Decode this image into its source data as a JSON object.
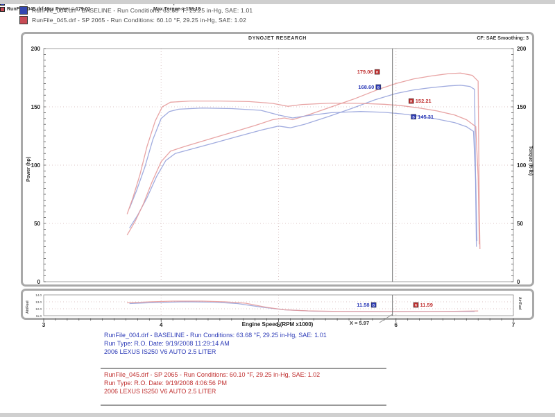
{
  "colors": {
    "accent_red": "#c03030",
    "accent_blue": "#2f3db8",
    "curve_red": "#e59a9a",
    "curve_blue": "#97a3dc",
    "panel_border": "#a9a9a9"
  },
  "top_runs": [
    {
      "series": "blue",
      "swatch": "#3347b0",
      "text": "RunFile_004.drf - BASELINE  -  Run Conditions: 63.68 °F, 29.25 in-Hg, SAE: 1.01"
    },
    {
      "series": "red",
      "swatch": "#c84b55",
      "text": "RunFile_045.drf - SP 2065  -  Run Conditions: 60.10 °F, 29.25 in-Hg, SAE: 1.02"
    }
  ],
  "chart_header": {
    "brand": "DYNOJET RESEARCH",
    "correction": "CF: SAE   Smoothing: 3"
  },
  "legend": {
    "rows": [
      {
        "series": "blue",
        "swatch": "#3347b0",
        "file": "RunFile_004.drf Max Power = 168.92",
        "torque": "Max Torque = 151.92"
      },
      {
        "series": "red",
        "swatch": "#c84b55",
        "file": "RunFile_045.drf Max Power = 179.01",
        "torque": "Max Torque = 153.18"
      }
    ]
  },
  "axis": {
    "x_label": "Engine Speed (RPM x1000)",
    "y_left_label": "Power (hp)",
    "y_right_label": "Torque (ft-lb)",
    "afr_label_left": "Air/Fuel",
    "afr_label_right": "Air/Fuel",
    "cursor_label": "X = 5.97"
  },
  "footer": {
    "blue_lines": [
      "RunFile_004.drf - BASELINE  -  Run Conditions: 63.68 °F, 29.25 in-Hg, SAE: 1.01",
      "Run Type: R.O.  Date: 9/19/2008 11:29:14 AM",
      "2006 LEXUS IS250 V6 AUTO 2.5 LITER"
    ],
    "red_lines": [
      "RunFile_045.drf - SP 2065  -  Run Conditions: 60.10 °F, 29.25 in-Hg, SAE: 1.02",
      "Run Type: R.O.  Date: 9/19/2008 4:06:56 PM",
      "2006 LEXUS IS250 V6 AUTO 2.5 LITER"
    ]
  },
  "chart_data": [
    {
      "id": "main",
      "type": "line",
      "title": "DYNOJET RESEARCH",
      "xlabel": "Engine Speed (RPM x1000)",
      "ylabel_left": "Power (hp)",
      "ylabel_right": "Torque (ft-lb)",
      "xlim": [
        3,
        7
      ],
      "ylim": [
        0,
        200
      ],
      "ytick_step": 50,
      "ytick_minor": 5,
      "ytick_decimals": 0,
      "ygrid": [
        50,
        100,
        150
      ],
      "xgrid": [
        4,
        5,
        6,
        7
      ],
      "grid": true,
      "legend_position": "top-left",
      "cursor_x": 5.97,
      "series": [
        {
          "name": "baseline-power-hp",
          "color": "#97a3dc",
          "points": [
            [
              3.73,
              46
            ],
            [
              3.8,
              57
            ],
            [
              3.88,
              72
            ],
            [
              3.96,
              90
            ],
            [
              4.04,
              104
            ],
            [
              4.12,
              110
            ],
            [
              4.25,
              113.5
            ],
            [
              4.45,
              119
            ],
            [
              4.65,
              124.5
            ],
            [
              4.85,
              130
            ],
            [
              5.0,
              133.5
            ],
            [
              5.1,
              132
            ],
            [
              5.22,
              135
            ],
            [
              5.42,
              141.5
            ],
            [
              5.62,
              148.5
            ],
            [
              5.82,
              156
            ],
            [
              6.0,
              161.5
            ],
            [
              6.15,
              164.5
            ],
            [
              6.3,
              166.5
            ],
            [
              6.45,
              168
            ],
            [
              6.55,
              168.6
            ],
            [
              6.63,
              167.5
            ],
            [
              6.67,
              165
            ],
            [
              6.68,
              70
            ],
            [
              6.685,
              30
            ]
          ]
        },
        {
          "name": "sp2065-power-hp",
          "color": "#e59a9a",
          "points": [
            [
              3.71,
              40
            ],
            [
              3.78,
              52
            ],
            [
              3.85,
              67
            ],
            [
              3.92,
              85
            ],
            [
              4.0,
              103
            ],
            [
              4.08,
              112
            ],
            [
              4.2,
              116
            ],
            [
              4.4,
              122
            ],
            [
              4.6,
              128
            ],
            [
              4.8,
              134
            ],
            [
              4.95,
              139
            ],
            [
              5.05,
              140.5
            ],
            [
              5.12,
              139
            ],
            [
              5.25,
              143
            ],
            [
              5.45,
              150
            ],
            [
              5.65,
              157
            ],
            [
              5.85,
              165
            ],
            [
              6.0,
              170
            ],
            [
              6.15,
              174
            ],
            [
              6.3,
              176.5
            ],
            [
              6.45,
              178.5
            ],
            [
              6.55,
              179
            ],
            [
              6.65,
              177
            ],
            [
              6.7,
              172
            ],
            [
              6.71,
              60
            ],
            [
              6.715,
              28
            ]
          ]
        },
        {
          "name": "baseline-torque-ftlb",
          "color": "#97a3dc",
          "points": [
            [
              3.73,
              63
            ],
            [
              3.79,
              78
            ],
            [
              3.86,
              98
            ],
            [
              3.93,
              122
            ],
            [
              4.0,
              140
            ],
            [
              4.07,
              146
            ],
            [
              4.15,
              148
            ],
            [
              4.35,
              149
            ],
            [
              4.6,
              148.5
            ],
            [
              4.85,
              147
            ],
            [
              5.0,
              143
            ],
            [
              5.12,
              140.5
            ],
            [
              5.25,
              142.5
            ],
            [
              5.45,
              145
            ],
            [
              5.7,
              146
            ],
            [
              5.9,
              145.3
            ],
            [
              6.05,
              144
            ],
            [
              6.2,
              142
            ],
            [
              6.35,
              139.5
            ],
            [
              6.5,
              136.5
            ],
            [
              6.6,
              133
            ],
            [
              6.66,
              129
            ],
            [
              6.68,
              85
            ],
            [
              6.69,
              35
            ]
          ]
        },
        {
          "name": "sp2065-torque-ftlb",
          "color": "#e59a9a",
          "points": [
            [
              3.71,
              58
            ],
            [
              3.76,
              72
            ],
            [
              3.82,
              92
            ],
            [
              3.88,
              116
            ],
            [
              3.95,
              138
            ],
            [
              4.01,
              150
            ],
            [
              4.08,
              154
            ],
            [
              4.25,
              155
            ],
            [
              4.5,
              155
            ],
            [
              4.75,
              154.5
            ],
            [
              4.95,
              153
            ],
            [
              5.08,
              150.5
            ],
            [
              5.2,
              152
            ],
            [
              5.45,
              153.2
            ],
            [
              5.7,
              153
            ],
            [
              5.9,
              152.2
            ],
            [
              6.05,
              151
            ],
            [
              6.2,
              149
            ],
            [
              6.35,
              146.5
            ],
            [
              6.5,
              143
            ],
            [
              6.6,
              139
            ],
            [
              6.68,
              133
            ],
            [
              6.7,
              90
            ],
            [
              6.71,
              32
            ]
          ]
        }
      ],
      "annotations": [
        {
          "x": 5.84,
          "y": 180,
          "text": "179.06",
          "letter": "R",
          "color": "#c03030",
          "side": "left"
        },
        {
          "x": 5.85,
          "y": 167,
          "text": "168.60",
          "letter": "B",
          "color": "#2f3db8",
          "side": "left"
        },
        {
          "x": 6.13,
          "y": 155,
          "text": "152.21",
          "letter": "R",
          "color": "#c03030",
          "side": "right"
        },
        {
          "x": 6.15,
          "y": 141.5,
          "text": "145.31",
          "letter": "B",
          "color": "#2f3db8",
          "side": "right"
        }
      ]
    },
    {
      "id": "afr",
      "type": "line",
      "ylabel_left": "Air/Fuel",
      "ylabel_right": "Air/Fuel",
      "xlim": [
        3,
        7
      ],
      "ylim": [
        11,
        14
      ],
      "ytick_step": 1,
      "ytick_decimals": 1,
      "ygrid": [
        12,
        13
      ],
      "xgrid": [
        4,
        5,
        6,
        7
      ],
      "grid": true,
      "cursor_x": 5.97,
      "xtick_step": 1,
      "xtick_minor": 0.1,
      "series": [
        {
          "name": "baseline-afr",
          "color": "#97a3dc",
          "points": [
            [
              3.73,
              12.75
            ],
            [
              3.95,
              12.9
            ],
            [
              4.2,
              13.0
            ],
            [
              4.45,
              12.95
            ],
            [
              4.65,
              12.75
            ],
            [
              4.85,
              12.25
            ],
            [
              5.05,
              11.85
            ],
            [
              5.3,
              11.65
            ],
            [
              5.6,
              11.6
            ],
            [
              5.9,
              11.58
            ],
            [
              6.2,
              11.6
            ],
            [
              6.45,
              11.62
            ],
            [
              6.67,
              11.6
            ]
          ]
        },
        {
          "name": "sp2065-afr",
          "color": "#e59a9a",
          "points": [
            [
              3.71,
              12.85
            ],
            [
              3.9,
              13.0
            ],
            [
              4.1,
              13.1
            ],
            [
              4.35,
              13.1
            ],
            [
              4.55,
              13.0
            ],
            [
              4.72,
              12.8
            ],
            [
              4.9,
              12.2
            ],
            [
              5.05,
              11.85
            ],
            [
              5.25,
              11.7
            ],
            [
              5.5,
              11.62
            ],
            [
              5.9,
              11.59
            ],
            [
              6.2,
              11.6
            ],
            [
              6.5,
              11.64
            ],
            [
              6.7,
              11.68
            ]
          ]
        }
      ],
      "annotations": [
        {
          "x": 5.81,
          "y": 12.55,
          "text": "11.58",
          "letter": "B",
          "color": "#2f3db8",
          "side": "left"
        },
        {
          "x": 6.17,
          "y": 12.55,
          "text": "11.59",
          "letter": "R",
          "color": "#c03030",
          "side": "right"
        }
      ]
    }
  ]
}
